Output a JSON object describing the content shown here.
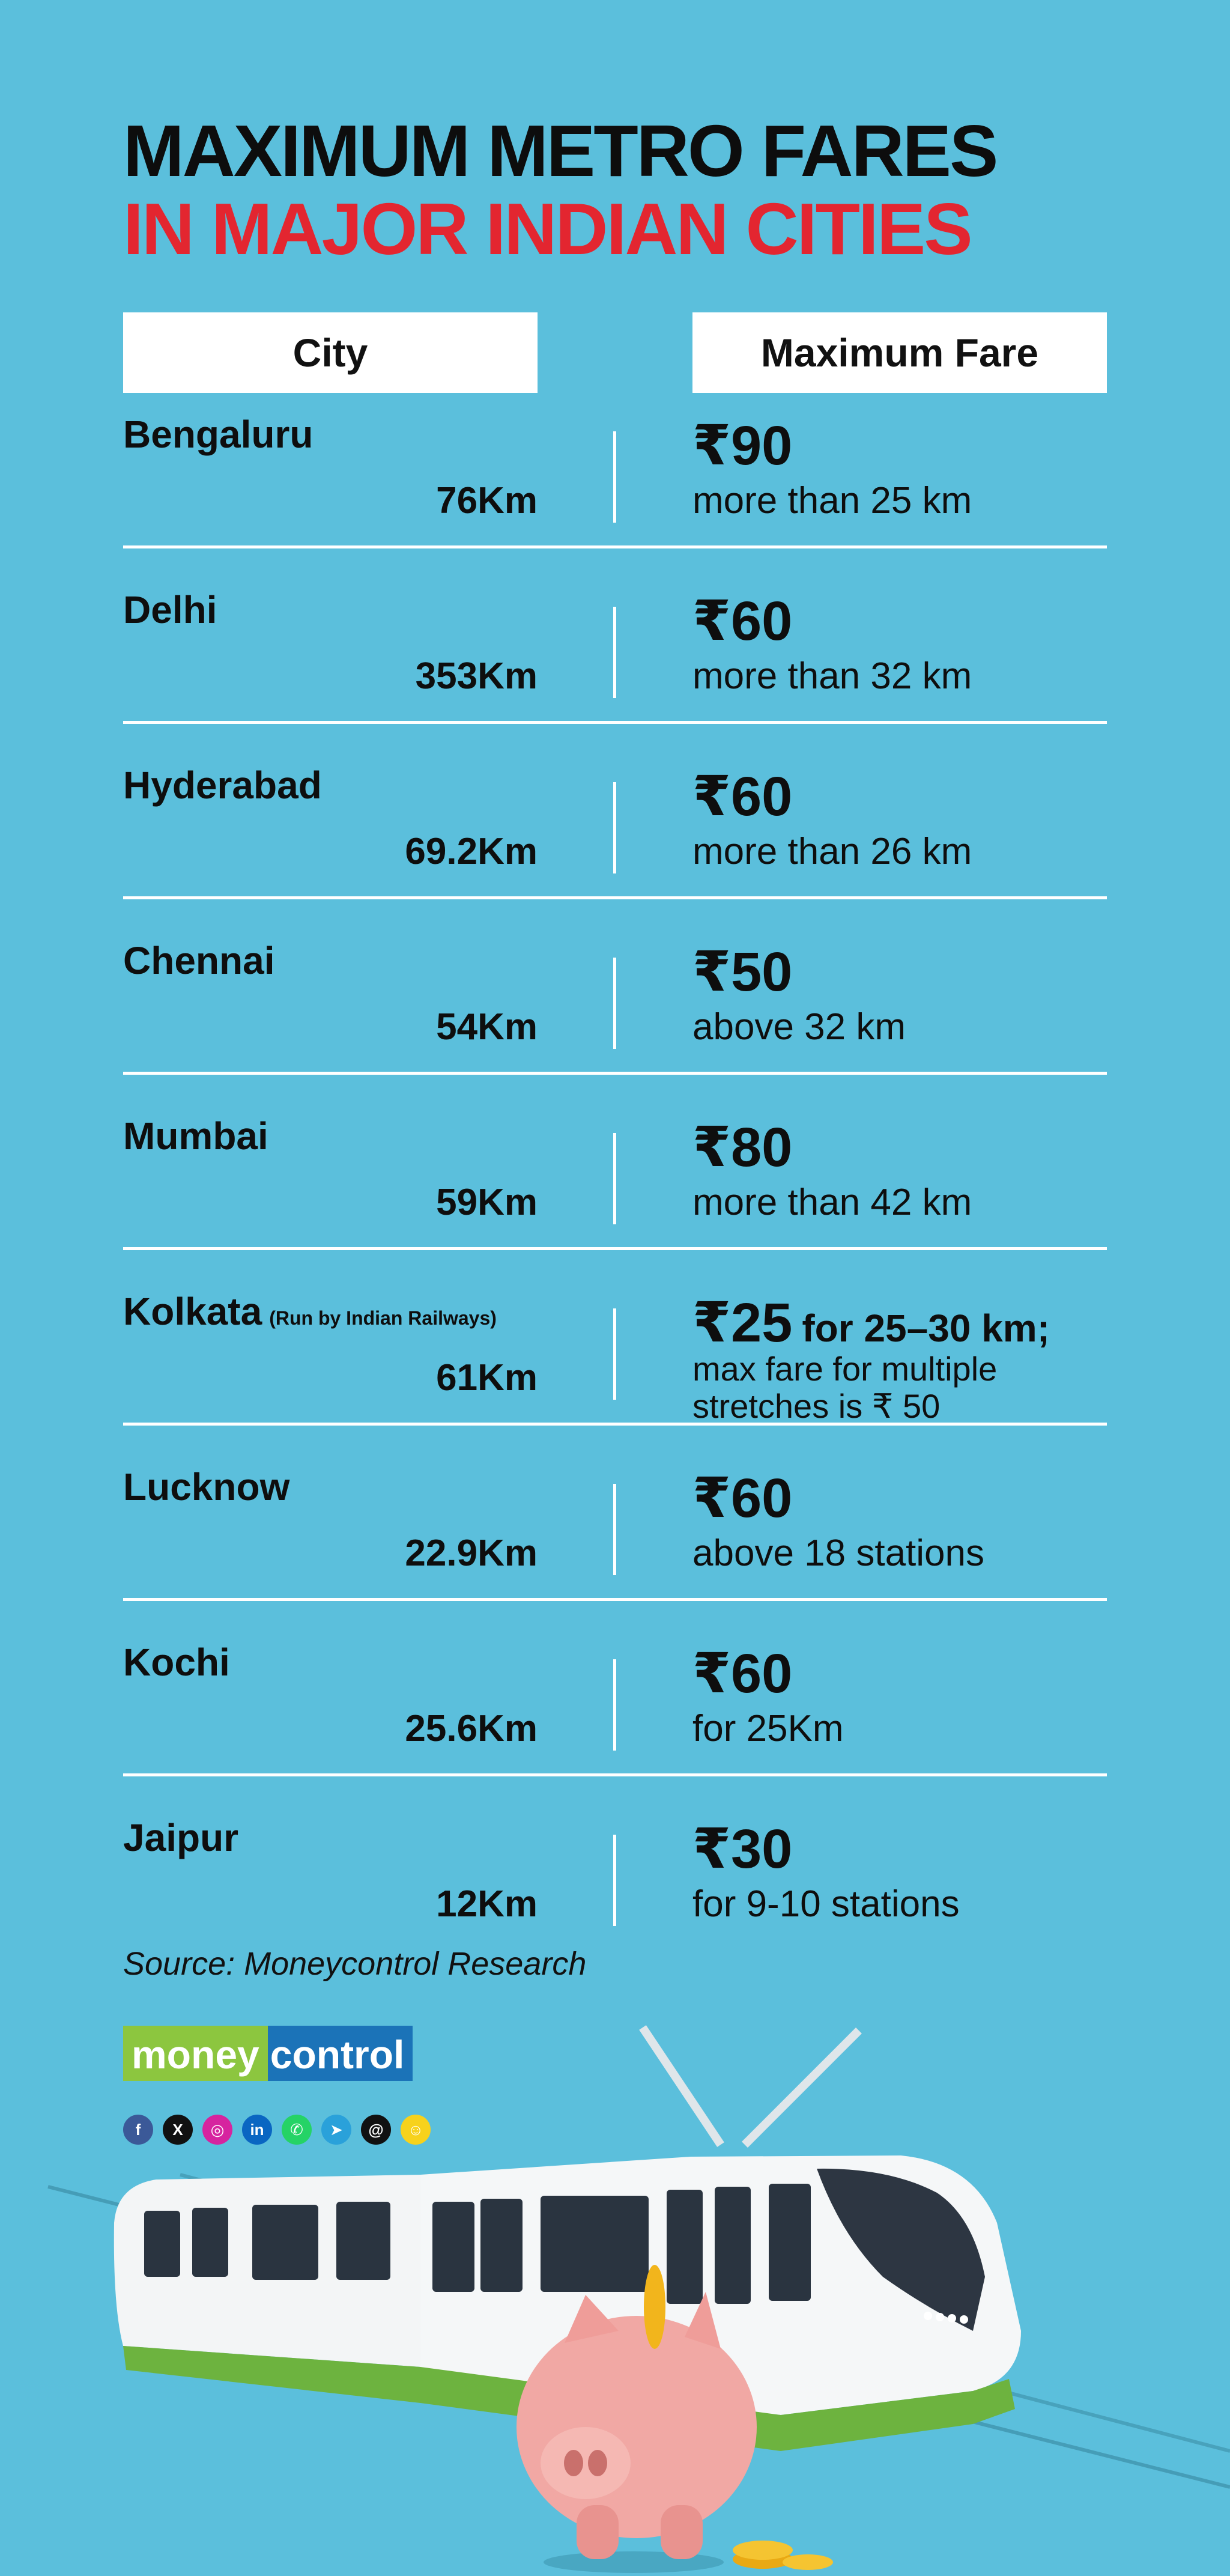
{
  "title": {
    "line1": "MAXIMUM METRO FARES",
    "line2": "IN MAJOR INDIAN CITIES"
  },
  "headers": {
    "city": "City",
    "fare": "Maximum Fare"
  },
  "rows": [
    {
      "city": "Bengaluru",
      "note": "",
      "km": "76Km",
      "fare": "₹90",
      "fare_suffix": "",
      "desc1": "more than 25 km",
      "desc2": ""
    },
    {
      "city": "Delhi",
      "note": "",
      "km": "353Km",
      "fare": "₹60",
      "fare_suffix": "",
      "desc1": "more than 32 km",
      "desc2": ""
    },
    {
      "city": "Hyderabad",
      "note": "",
      "km": "69.2Km",
      "fare": "₹60",
      "fare_suffix": "",
      "desc1": "more than 26 km",
      "desc2": ""
    },
    {
      "city": "Chennai",
      "note": "",
      "km": "54Km",
      "fare": "₹50",
      "fare_suffix": "",
      "desc1": "above 32 km",
      "desc2": ""
    },
    {
      "city": "Mumbai",
      "note": "",
      "km": "59Km",
      "fare": "₹80",
      "fare_suffix": "",
      "desc1": "more than 42 km",
      "desc2": ""
    },
    {
      "city": "Kolkata",
      "note": "(Run by Indian Railways)",
      "km": "61Km",
      "fare": "₹25",
      "fare_suffix": "for 25–30 km;",
      "desc1": "max fare for multiple",
      "desc2": "stretches is ₹ 50"
    },
    {
      "city": "Lucknow",
      "note": "",
      "km": "22.9Km",
      "fare": "₹60",
      "fare_suffix": "",
      "desc1": "above 18 stations",
      "desc2": ""
    },
    {
      "city": "Kochi",
      "note": "",
      "km": "25.6Km",
      "fare": "₹60",
      "fare_suffix": "",
      "desc1": "for 25Km",
      "desc2": ""
    },
    {
      "city": "Jaipur",
      "note": "",
      "km": "12Km",
      "fare": "₹30",
      "fare_suffix": "",
      "desc1": "for 9-10 stations",
      "desc2": ""
    }
  ],
  "source": "Source: Moneycontrol Research",
  "logo": {
    "part1": "money",
    "part2": "control"
  },
  "socials": [
    {
      "name": "facebook-icon",
      "glyph": "f",
      "color": "#3b5998"
    },
    {
      "name": "x-icon",
      "glyph": "X",
      "color": "#111111"
    },
    {
      "name": "instagram-icon",
      "glyph": "◎",
      "color": "#d6249f"
    },
    {
      "name": "linkedin-icon",
      "glyph": "in",
      "color": "#0a66c2"
    },
    {
      "name": "whatsapp-icon",
      "glyph": "✆",
      "color": "#25d366"
    },
    {
      "name": "telegram-icon",
      "glyph": "➤",
      "color": "#2aa1da"
    },
    {
      "name": "threads-icon",
      "glyph": "@",
      "color": "#111111"
    },
    {
      "name": "snapchat-icon",
      "glyph": "☺",
      "color": "#f7d21c"
    }
  ],
  "colors": {
    "background": "#5bbfdc",
    "accent_red": "#e32630",
    "brand_green": "#8cc63f",
    "brand_blue": "#1b73b8"
  }
}
